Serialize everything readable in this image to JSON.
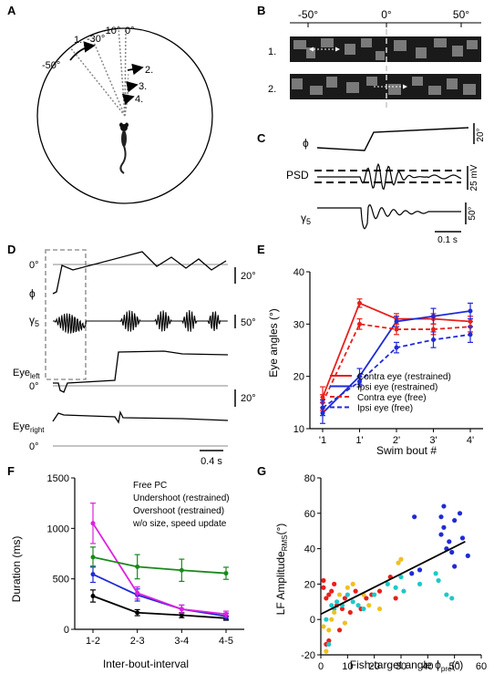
{
  "panels": {
    "A": "A",
    "B": "B",
    "C": "C",
    "D": "D",
    "E": "E",
    "F": "F",
    "G": "G"
  },
  "panelA": {
    "angles": [
      "-30°",
      "-10°",
      "0°",
      "-50°"
    ],
    "arrow_labels": [
      "1.",
      "2.",
      "3.",
      "4."
    ]
  },
  "panelB": {
    "ticks": [
      "-50°",
      "0°",
      "50°"
    ],
    "rows": [
      "1.",
      "2."
    ]
  },
  "panelC": {
    "phi": "ϕ",
    "psd": "PSD",
    "gamma": "γ",
    "gamma_sub": "5",
    "scale_phi": "20°",
    "scale_psd": "25 mV",
    "scale_gamma": "50°",
    "scale_time": "0.1 s"
  },
  "panelD": {
    "zero": "0°",
    "phi": "ϕ",
    "gamma": "γ",
    "gamma_sub": "5",
    "eye_left": "Eye",
    "eye_left_sub": "left",
    "eye_right": "Eye",
    "eye_right_sub": "right",
    "scale_20a": "20°",
    "scale_50": "50°",
    "scale_20b": "20°",
    "scale_time": "0.4 s"
  },
  "chart_data": [
    {
      "type": "line",
      "panel": "E",
      "ylabel": "Eye angles (°)",
      "xlabel": "Swim bout #",
      "categories": [
        "'1",
        "1'",
        "2'",
        "3'",
        "4'"
      ],
      "ylim": [
        10,
        40
      ],
      "yticks": [
        10,
        20,
        30,
        40
      ],
      "legend_position": "bottom-right",
      "series": [
        {
          "name": "Contra eye (restrained)",
          "color": "#e8201c",
          "style": "solid",
          "values": [
            16,
            34,
            31,
            31,
            30.5
          ],
          "err": [
            2,
            0.8,
            1,
            1,
            1
          ]
        },
        {
          "name": "Ipsi eye (restrained)",
          "color": "#1f2bd6",
          "style": "solid",
          "values": [
            13,
            20,
            30.5,
            31.5,
            32.5
          ],
          "err": [
            2,
            1.5,
            1,
            1.5,
            1.5
          ]
        },
        {
          "name": "Contra eye (free)",
          "color": "#e8201c",
          "style": "dashed",
          "values": [
            15,
            30,
            29,
            29,
            29.5
          ],
          "err": [
            1.5,
            1,
            1,
            1,
            1
          ]
        },
        {
          "name": "Ipsi eye (free)",
          "color": "#1f2bd6",
          "style": "dashed",
          "values": [
            14,
            19,
            25.5,
            27,
            28
          ],
          "err": [
            1.5,
            1,
            1,
            1.5,
            1.5
          ]
        }
      ]
    },
    {
      "type": "line",
      "panel": "F",
      "ylabel": "Duration (ms)",
      "xlabel": "Inter-bout-interval",
      "categories": [
        "1-2",
        "2-3",
        "3-4",
        "4-5"
      ],
      "ylim": [
        0,
        1500
      ],
      "yticks": [
        0,
        500,
        1000,
        1500
      ],
      "legend_position": "top-right",
      "series": [
        {
          "name": "Free PC",
          "color": "#000000",
          "values": [
            330,
            165,
            140,
            110
          ],
          "err": [
            60,
            30,
            25,
            20
          ]
        },
        {
          "name": "Undershoot (restrained)",
          "color": "#1f2bd6",
          "values": [
            545,
            340,
            200,
            130
          ],
          "err": [
            80,
            60,
            40,
            30
          ]
        },
        {
          "name": "Overshoot (restrained)",
          "color": "#e020e0",
          "values": [
            1050,
            360,
            200,
            150
          ],
          "err": [
            200,
            60,
            40,
            30
          ]
        },
        {
          "name": "w/o size, speed update",
          "color": "#1a8a1a",
          "values": [
            715,
            620,
            585,
            555
          ],
          "err": [
            100,
            120,
            110,
            60
          ]
        }
      ]
    },
    {
      "type": "scatter",
      "panel": "G",
      "ylabel": "LF Amplitude",
      "ylabel_sub": "RMS",
      "ylabel_unit": "(°)",
      "xlabel": "Fish-target angle ϕ",
      "xlabel_sub": "pre",
      "xlabel_unit": "(°)",
      "xlim": [
        0,
        60
      ],
      "ylim": [
        -20,
        80
      ],
      "xticks": [
        0,
        10,
        20,
        30,
        40,
        50,
        60
      ],
      "yticks": [
        -20,
        0,
        20,
        40,
        60,
        80
      ],
      "fit": {
        "x0": 0,
        "y0": 3,
        "x1": 54,
        "y1": 44
      },
      "groups": [
        {
          "color": "#e8201c",
          "points": [
            [
              1,
              18
            ],
            [
              2,
              12
            ],
            [
              3,
              14
            ],
            [
              4,
              16
            ],
            [
              1,
              22
            ],
            [
              3,
              -12
            ],
            [
              2,
              -14
            ],
            [
              6,
              8
            ],
            [
              8,
              6
            ],
            [
              9,
              12
            ],
            [
              11,
              4
            ],
            [
              13,
              16
            ],
            [
              15,
              6
            ],
            [
              17,
              12
            ],
            [
              19,
              14
            ],
            [
              22,
              16
            ],
            [
              26,
              24
            ],
            [
              28,
              12
            ],
            [
              7,
              -6
            ],
            [
              5,
              20
            ]
          ]
        },
        {
          "color": "#1fc8c8",
          "points": [
            [
              2,
              0
            ],
            [
              4,
              8
            ],
            [
              5,
              6
            ],
            [
              8,
              8
            ],
            [
              12,
              10
            ],
            [
              14,
              8
            ],
            [
              16,
              6
            ],
            [
              20,
              14
            ],
            [
              25,
              20
            ],
            [
              28,
              18
            ],
            [
              30,
              24
            ],
            [
              31,
              16
            ],
            [
              37,
              20
            ],
            [
              43,
              26
            ],
            [
              44,
              22
            ],
            [
              47,
              14
            ],
            [
              49,
              12
            ],
            [
              3,
              -14
            ],
            [
              6,
              10
            ],
            [
              10,
              14
            ]
          ]
        },
        {
          "color": "#f0c020",
          "points": [
            [
              2,
              -18
            ],
            [
              3,
              -6
            ],
            [
              5,
              4
            ],
            [
              7,
              14
            ],
            [
              10,
              18
            ],
            [
              12,
              20
            ],
            [
              16,
              14
            ],
            [
              18,
              8
            ],
            [
              22,
              6
            ],
            [
              29,
              32
            ],
            [
              30,
              34
            ],
            [
              1,
              -4
            ],
            [
              4,
              0
            ],
            [
              9,
              -2
            ]
          ]
        },
        {
          "color": "#1f2bd6",
          "points": [
            [
              34,
              26
            ],
            [
              35,
              58
            ],
            [
              37,
              28
            ],
            [
              45,
              48
            ],
            [
              45,
              58
            ],
            [
              46,
              52
            ],
            [
              47,
              40
            ],
            [
              48,
              44
            ],
            [
              49,
              38
            ],
            [
              50,
              56
            ],
            [
              52,
              60
            ],
            [
              53,
              46
            ],
            [
              55,
              36
            ],
            [
              46,
              64
            ],
            [
              50,
              30
            ]
          ]
        }
      ]
    }
  ]
}
